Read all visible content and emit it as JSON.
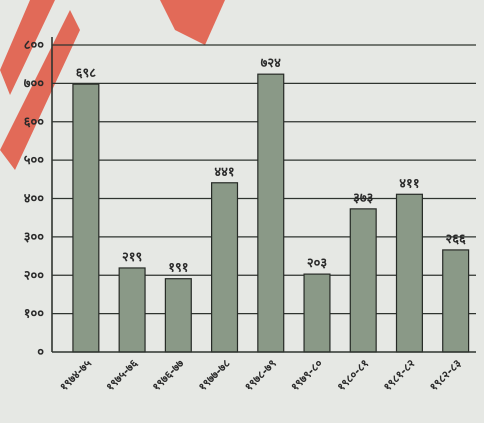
{
  "chart_data": {
    "type": "bar",
    "categories": [
      "१९७४-७५",
      "१९७५-७६",
      "१९७६-७७",
      "१९७७-७८",
      "१९७८-७९",
      "१९७९-८०",
      "१९८०-८१",
      "१९८१-८२",
      "१९८२-८३"
    ],
    "values": [
      698,
      219,
      191,
      441,
      724,
      203,
      373,
      411,
      266
    ],
    "data_labels": [
      "६९८",
      "२१९",
      "१९१",
      "४४१",
      "७२४",
      "२०३",
      "३७३",
      "४११",
      "२६६"
    ],
    "yticks": [
      0,
      100,
      200,
      300,
      400,
      500,
      600,
      700,
      800
    ],
    "ytick_labels": [
      "०",
      "१००",
      "२००",
      "३००",
      "४००",
      "५००",
      "६००",
      "७००",
      "८००"
    ],
    "ylim": [
      0,
      800
    ],
    "grid": true,
    "title": "",
    "xlabel": "",
    "ylabel": "",
    "colors": {
      "bar": "#8a9987",
      "bar_stroke": "#262a26",
      "grid": "#2f342f",
      "background": "#e6e8e4",
      "watermark": "#e0402a"
    }
  }
}
